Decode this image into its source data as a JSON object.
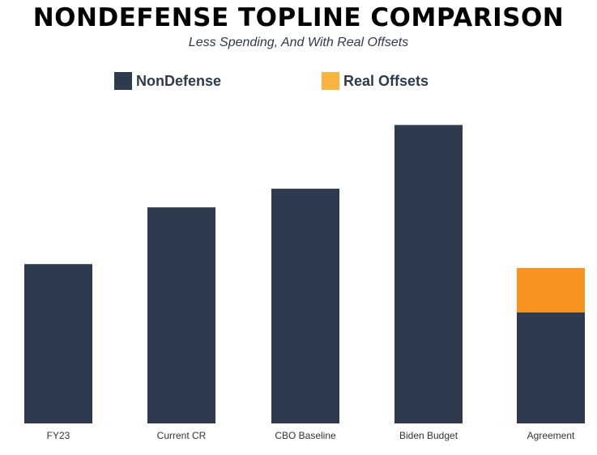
{
  "chart_data": {
    "type": "bar",
    "stacked": true,
    "title": "NONDEFENSE TOPLINE COMPARISON",
    "subtitle": "Less Spending, And With Real Offsets",
    "categories": [
      "FY23",
      "Current CR",
      "CBO Baseline",
      "Biden Budget",
      "Agreement"
    ],
    "series": [
      {
        "name": "NonDefense",
        "color": "#2e3a4e",
        "values": [
          205,
          278,
          302,
          384,
          143
        ]
      },
      {
        "name": "Real Offsets",
        "color": "#f7931e",
        "values": [
          0,
          0,
          0,
          0,
          57
        ]
      }
    ],
    "legend_colors": [
      "#2e3a4e",
      "#fbb33f"
    ],
    "xlabel": "",
    "ylabel": "",
    "ylim": [
      0,
      400
    ],
    "grid": false,
    "legend": "top"
  }
}
